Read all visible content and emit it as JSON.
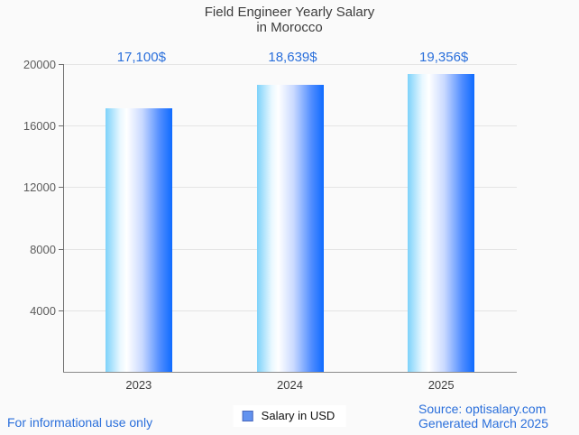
{
  "title": {
    "line1": "Field Engineer Yearly Salary",
    "line2": "in Morocco"
  },
  "chart_data": {
    "type": "bar",
    "title": "Field Engineer Yearly Salary in Morocco",
    "categories": [
      "2023",
      "2024",
      "2025"
    ],
    "values": [
      17100,
      18639,
      19356
    ],
    "value_labels": [
      "17,100$",
      "18,639$",
      "19,356$"
    ],
    "xlabel": "",
    "ylabel": "",
    "ylim": [
      0,
      20000
    ],
    "yticks": [
      4000,
      8000,
      12000,
      16000,
      20000
    ],
    "grid": true,
    "legend": {
      "label": "Salary in USD",
      "position": "bottom"
    },
    "bar_gradient": [
      "#7dd2fa",
      "#ffffff",
      "#0e6bff"
    ],
    "value_label_color": "#2a6fdb"
  },
  "footer": {
    "disclaimer": "For informational use only",
    "source_line1": "Source: optisalary.com",
    "source_line2": "Generated March 2025"
  },
  "colors": {
    "background": "#fafafa",
    "title_text": "#3d3d3d",
    "axis": "#6e6e6e",
    "gridline": "#e4e4e4",
    "tick_text": "#5c5c5c",
    "accent_blue": "#2a6fdb"
  }
}
